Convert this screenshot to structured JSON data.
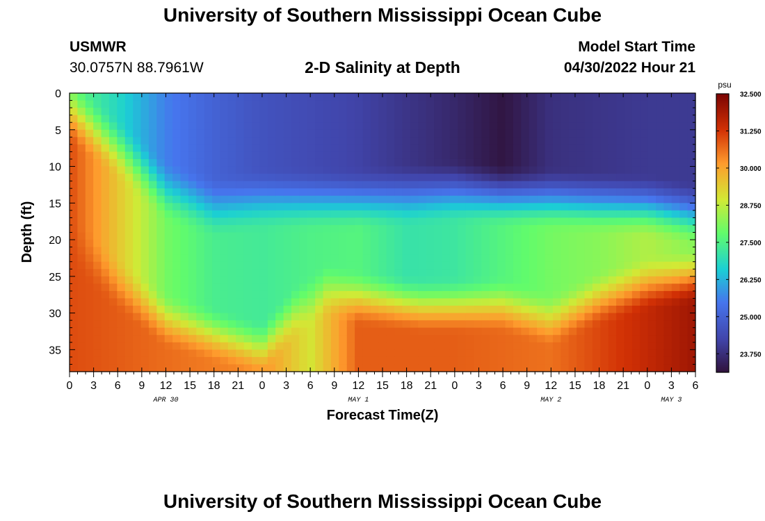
{
  "page": {
    "title": "University of Southern Mississippi Ocean Cube",
    "bottom_title": "University of Southern Mississippi Ocean Cube",
    "station": "USMWR",
    "coords": "30.0757N  88.7961W",
    "subtitle": "2-D Salinity at Depth",
    "model_start_label": "Model Start Time",
    "model_start_value": "04/30/2022 Hour 21"
  },
  "chart_data": {
    "type": "heatmap",
    "title": "2-D Salinity at Depth",
    "xlabel": "Forecast Time(Z)",
    "ylabel": "Depth (ft)",
    "x_tick_labels": [
      "0",
      "3",
      "6",
      "9",
      "12",
      "15",
      "18",
      "21",
      "0",
      "3",
      "6",
      "9",
      "12",
      "15",
      "18",
      "21",
      "0",
      "3",
      "6",
      "9",
      "12",
      "15",
      "18",
      "21",
      "0",
      "3",
      "6"
    ],
    "x_hours_range": [
      0,
      78
    ],
    "date_labels": [
      {
        "text": "APR 30",
        "hour": 12
      },
      {
        "text": "MAY 1",
        "hour": 36
      },
      {
        "text": "MAY 2",
        "hour": 60
      },
      {
        "text": "MAY 3",
        "hour": 75
      }
    ],
    "y_ticks": [
      0,
      5,
      10,
      15,
      20,
      25,
      30,
      35
    ],
    "ylim": [
      0,
      38
    ],
    "colorbar": {
      "unit": "psu",
      "range": [
        23.125,
        32.5
      ],
      "tick_labels": [
        "32.500",
        "31.250",
        "30.000",
        "28.750",
        "27.500",
        "26.250",
        "25.000",
        "23.750"
      ],
      "tick_values": [
        32.5,
        31.25,
        30.0,
        28.75,
        27.5,
        26.25,
        25.0,
        23.75
      ]
    },
    "field_description": "Salinity (psu) vs forecast hour and depth",
    "surface_salinity_by_hour": [
      [
        0,
        27.8
      ],
      [
        6,
        26.8
      ],
      [
        12,
        25.6
      ],
      [
        18,
        25.0
      ],
      [
        24,
        24.6
      ],
      [
        36,
        24.2
      ],
      [
        48,
        23.6
      ],
      [
        54,
        23.2
      ],
      [
        60,
        23.8
      ],
      [
        72,
        24.0
      ],
      [
        78,
        24.0
      ]
    ],
    "bottom_salinity_by_hour": [
      [
        0,
        31.0
      ],
      [
        24,
        30.3
      ],
      [
        30,
        29.0
      ],
      [
        36,
        30.8
      ],
      [
        48,
        30.8
      ],
      [
        60,
        30.6
      ],
      [
        72,
        31.5
      ],
      [
        78,
        32.0
      ]
    ]
  }
}
